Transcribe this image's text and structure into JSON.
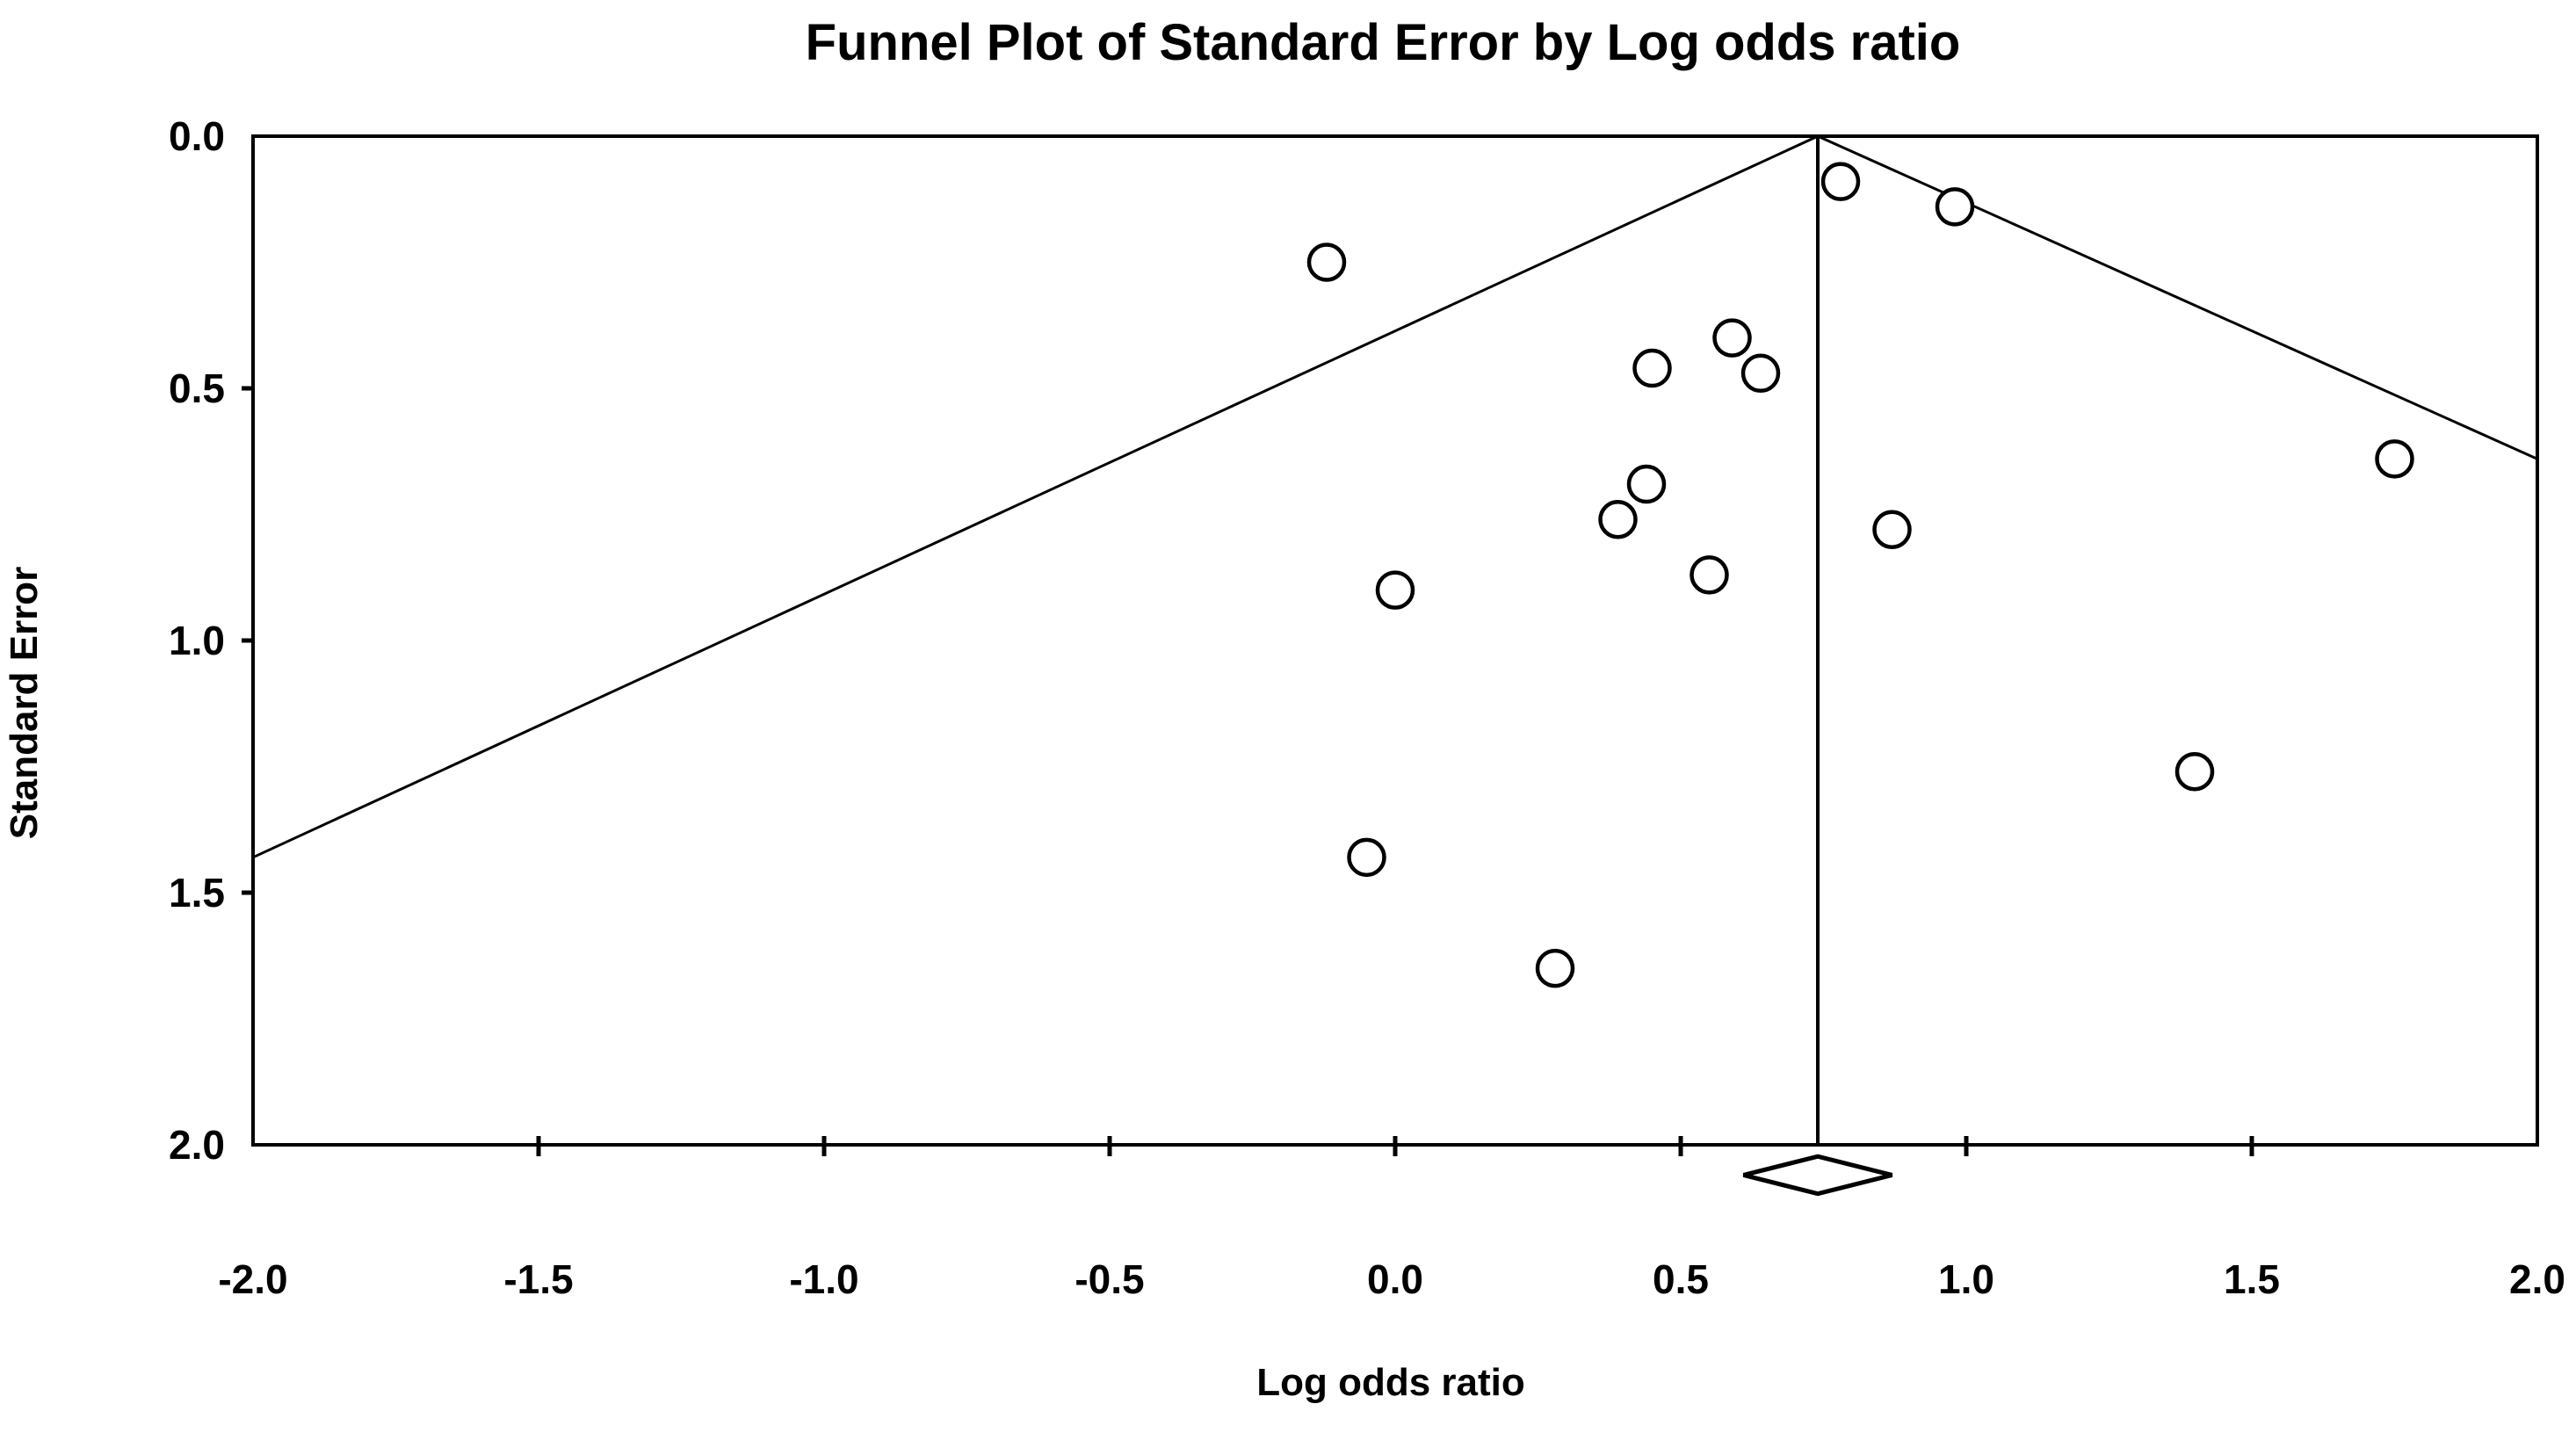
{
  "title": "Funnel Plot of Standard Error by Log odds ratio",
  "x_axis": {
    "label": "Log odds ratio",
    "tick_labels": [
      "-2.0",
      "-1.5",
      "-1.0",
      "-0.5",
      "0.0",
      "0.5",
      "1.0",
      "1.5",
      "2.0"
    ]
  },
  "y_axis": {
    "label": "Standard Error",
    "tick_labels": [
      "0.0",
      "0.5",
      "1.0",
      "1.5",
      "2.0"
    ]
  },
  "colors": {
    "ink": "#000000",
    "background": "#ffffff"
  },
  "chart_data": {
    "type": "scatter",
    "title": "Funnel Plot of Standard Error by Log odds ratio",
    "xlabel": "Log odds ratio",
    "ylabel": "Standard Error",
    "xlim": [
      -2.0,
      2.0
    ],
    "ylim": [
      0.0,
      2.0
    ],
    "y_inverted": true,
    "grid": false,
    "legend": "none",
    "marker": "open-circle",
    "x_ticks": [
      -2.0,
      -1.5,
      -1.0,
      -0.5,
      0.0,
      0.5,
      1.0,
      1.5,
      2.0
    ],
    "y_ticks": [
      0.0,
      0.5,
      1.0,
      1.5,
      2.0
    ],
    "points": [
      {
        "x": 0.78,
        "se": 0.09
      },
      {
        "x": 0.98,
        "se": 0.14
      },
      {
        "x": -0.12,
        "se": 0.25
      },
      {
        "x": 0.59,
        "se": 0.4
      },
      {
        "x": 0.45,
        "se": 0.46
      },
      {
        "x": 0.64,
        "se": 0.47
      },
      {
        "x": 1.75,
        "se": 0.64
      },
      {
        "x": 0.44,
        "se": 0.69
      },
      {
        "x": 0.39,
        "se": 0.76
      },
      {
        "x": 0.87,
        "se": 0.78
      },
      {
        "x": 0.55,
        "se": 0.87
      },
      {
        "x": 0.0,
        "se": 0.9
      },
      {
        "x": 1.4,
        "se": 1.26
      },
      {
        "x": -0.05,
        "se": 1.43
      },
      {
        "x": 0.28,
        "se": 1.65
      }
    ],
    "pooled_estimate_x": 0.74,
    "funnel_limits": {
      "apex": {
        "x": 0.74,
        "se": 0.0
      },
      "left_end": {
        "x": -2.0,
        "se": 1.43
      },
      "right_end": {
        "x": 2.0,
        "se": 0.64
      }
    },
    "diamond": {
      "x_left": 0.61,
      "x_center": 0.74,
      "x_right": 0.87,
      "se_center": 2.06,
      "se_half_height": 0.037
    }
  }
}
